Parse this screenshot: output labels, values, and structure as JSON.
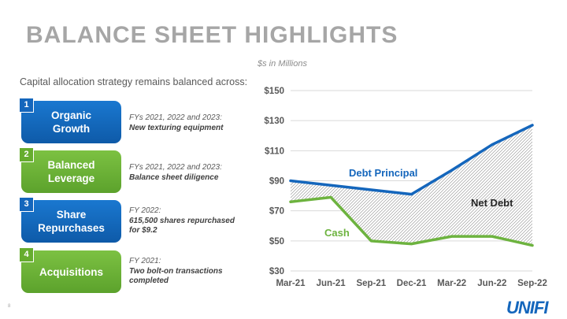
{
  "title": "BALANCE SHEET HIGHLIGHTS",
  "intro": "Capital allocation strategy remains balanced across:",
  "units_label": "$s in Millions",
  "items": [
    {
      "num": "1",
      "label_line1": "Organic",
      "label_line2": "Growth",
      "color": "blue",
      "desc_line1": "FYs 2021, 2022 and 2023:",
      "desc_line2": "New texturing equipment",
      "desc_line3": ""
    },
    {
      "num": "2",
      "label_line1": "Balanced",
      "label_line2": "Leverage",
      "color": "green",
      "desc_line1": "FYs 2021, 2022 and 2023:",
      "desc_line2": "Balance sheet diligence",
      "desc_line3": ""
    },
    {
      "num": "3",
      "label_line1": "Share",
      "label_line2": "Repurchases",
      "color": "blue",
      "desc_line1": "FY 2022:",
      "desc_line2": "615,500 shares repurchased",
      "desc_line3": "for $9.2"
    },
    {
      "num": "4",
      "label_line1": "Acquisitions",
      "label_line2": "",
      "color": "green",
      "desc_line1": "FY 2021:",
      "desc_line2": "Two bolt-on transactions",
      "desc_line3": "completed"
    }
  ],
  "slide_number": "8",
  "logo_text": "UNIFI",
  "colors": {
    "blue": "#1466bc",
    "green": "#6db33f",
    "title_gray": "#a6a6a6"
  },
  "chart_data": {
    "type": "line",
    "title": "",
    "units": "$s in Millions",
    "categories": [
      "Mar-21",
      "Jun-21",
      "Sep-21",
      "Dec-21",
      "Mar-22",
      "Jun-22",
      "Sep-22"
    ],
    "ylim": [
      30,
      150
    ],
    "yticks": [
      30,
      50,
      70,
      90,
      110,
      130,
      150
    ],
    "ytick_labels": [
      "$30",
      "$50",
      "$70",
      "$90",
      "$110",
      "$130",
      "$150"
    ],
    "series": [
      {
        "name": "Debt Principal",
        "color": "#1466bc",
        "values": [
          90,
          87,
          84,
          81,
          97,
          114,
          127
        ]
      },
      {
        "name": "Cash",
        "color": "#6db33f",
        "values": [
          76,
          79,
          50,
          48,
          53,
          53,
          47
        ]
      }
    ],
    "area_label": "Net Debt",
    "grid": true
  }
}
